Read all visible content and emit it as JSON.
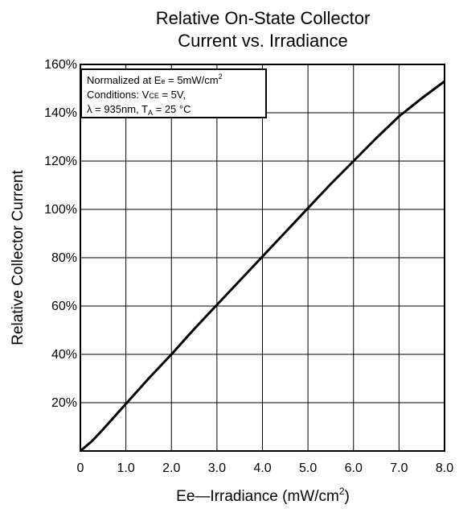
{
  "chart_data": {
    "type": "line",
    "title_line1": "Relative On-State Collector",
    "title_line2": "Current vs. Irradiance",
    "ylabel": "Relative Collector Current",
    "xlabel": "Ee—Irradiance (mW/cm",
    "xlabel_sup": "2",
    "xlabel_end": ")",
    "xlim": [
      0,
      8
    ],
    "ylim": [
      0,
      160
    ],
    "grid": true,
    "x_ticks": [
      "0",
      "1.0",
      "2.0",
      "3.0",
      "4.0",
      "5.0",
      "6.0",
      "7.0",
      "8.0"
    ],
    "y_ticks": [
      "20%",
      "40%",
      "60%",
      "80%",
      "100%",
      "120%",
      "140%",
      "160%"
    ],
    "legend_box": {
      "line1": "Normalized at E",
      "line1_sub": "e",
      "line1_rest": " = 5mW/cm",
      "line1_sup": "2",
      "line2": "Conditions: V",
      "line2_sub": "CE",
      "line2_rest": " = 5V,",
      "line3": "λ = 935nm, T",
      "line3_sub": "A",
      "line3_rest": " = 25 °C"
    },
    "series": [
      {
        "x": [
          0,
          0.25,
          0.5,
          1.0,
          1.5,
          2.0,
          2.5,
          3.0,
          3.5,
          4.0,
          4.5,
          5.0,
          5.5,
          6.0,
          6.5,
          7.0,
          7.5,
          8.0
        ],
        "y": [
          0,
          4,
          9,
          19.5,
          30,
          40,
          50.5,
          60.5,
          70.5,
          80.5,
          90.5,
          100.5,
          110.5,
          120,
          129.5,
          138.5,
          146,
          153
        ]
      }
    ]
  }
}
